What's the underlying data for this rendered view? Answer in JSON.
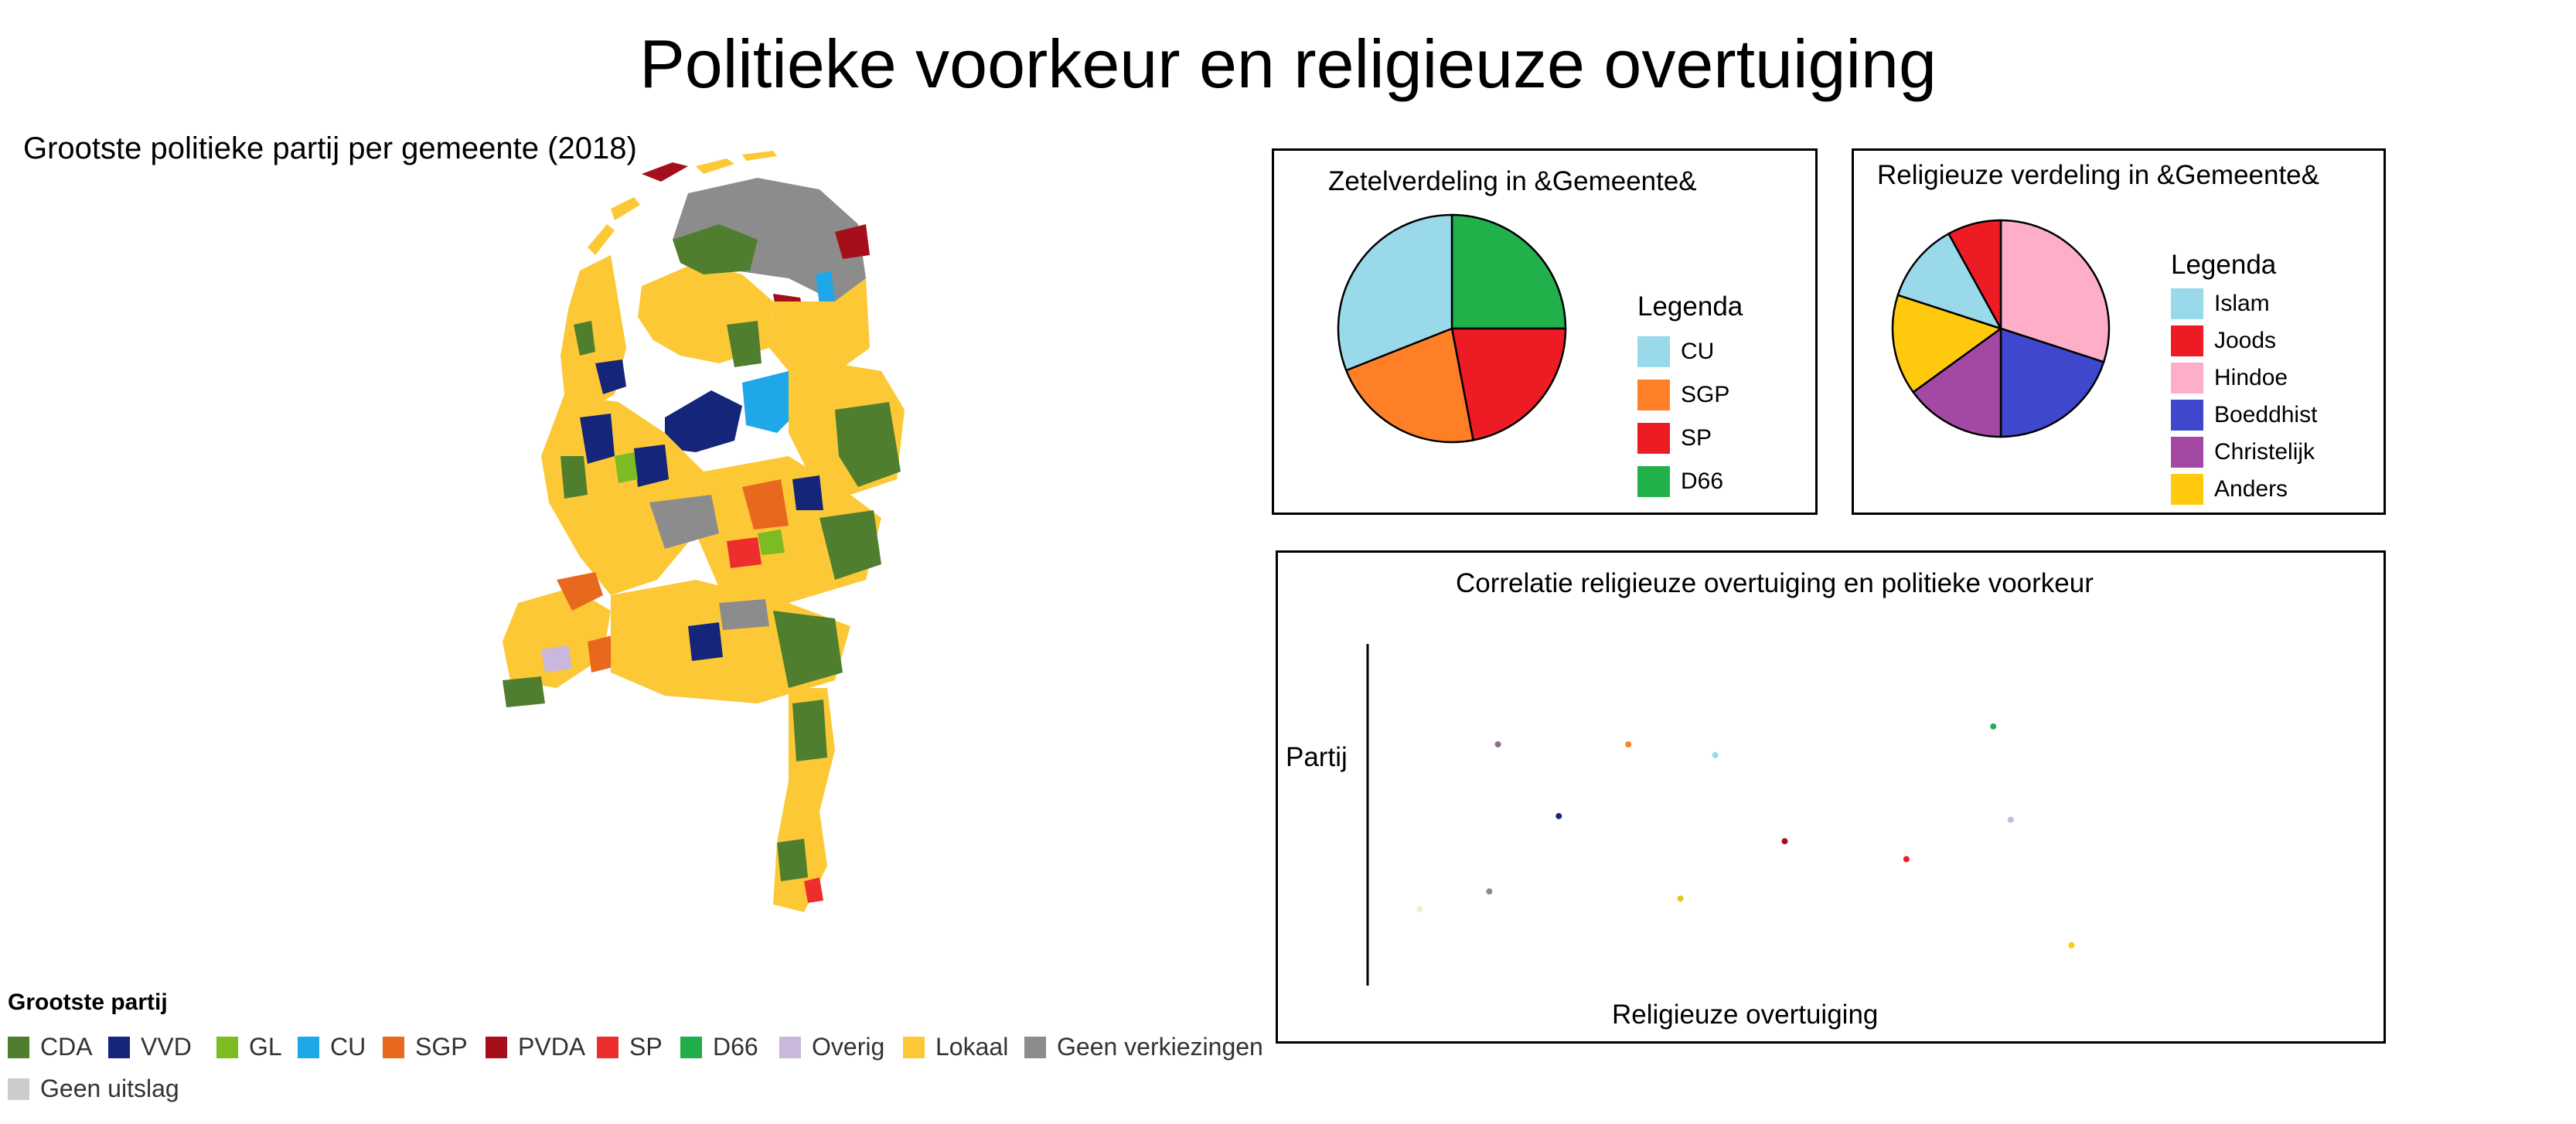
{
  "title": "Politieke voorkeur en religieuze overtuiging",
  "map": {
    "title": "Grootste politieke partij per gemeente (2018)",
    "legend_title": "Grootste partij",
    "legend": [
      {
        "label": "CDA",
        "color": "#4f7f2e"
      },
      {
        "label": "VVD",
        "color": "#14257a"
      },
      {
        "label": "GL",
        "color": "#7cbb22"
      },
      {
        "label": "CU",
        "color": "#1ea8ea"
      },
      {
        "label": "SGP",
        "color": "#e8681e"
      },
      {
        "label": "PVDA",
        "color": "#a50f1c"
      },
      {
        "label": "SP",
        "color": "#ee2d2d"
      },
      {
        "label": "D66",
        "color": "#1fae4a"
      },
      {
        "label": "Overig",
        "color": "#c9b7dc"
      },
      {
        "label": "Lokaal",
        "color": "#fcc836"
      },
      {
        "label": "Geen verkiezingen",
        "color": "#8c8c8c"
      },
      {
        "label": "Geen uitslag",
        "color": "#cccccc"
      }
    ]
  },
  "chart_data": [
    {
      "type": "pie",
      "title": "Zetelverdeling in &Gemeente&",
      "legend_title": "Legenda",
      "slices": [
        {
          "label": "D66",
          "value": 25,
          "color": "#22b04b"
        },
        {
          "label": "SP",
          "value": 22,
          "color": "#ed1c24"
        },
        {
          "label": "SGP",
          "value": 22,
          "color": "#ff7f27"
        },
        {
          "label": "CU",
          "value": 31,
          "color": "#99d9ea"
        }
      ],
      "legend": [
        {
          "label": "CU",
          "color": "#99d9ea"
        },
        {
          "label": "SGP",
          "color": "#ff7f27"
        },
        {
          "label": "SP",
          "color": "#ed1c24"
        },
        {
          "label": "D66",
          "color": "#22b04b"
        }
      ]
    },
    {
      "type": "pie",
      "title": "Religieuze verdeling in &Gemeente&",
      "legend_title": "Legenda",
      "slices": [
        {
          "label": "Hindoe",
          "value": 30,
          "color": "#ffaec9"
        },
        {
          "label": "Boeddhist",
          "value": 20,
          "color": "#3f48cc"
        },
        {
          "label": "Christelijk",
          "value": 15,
          "color": "#a349a4"
        },
        {
          "label": "Anders",
          "value": 15,
          "color": "#ffc90e"
        },
        {
          "label": "Islam",
          "value": 12,
          "color": "#99d9ea"
        },
        {
          "label": "Joods",
          "value": 8,
          "color": "#ed1c24"
        }
      ],
      "legend": [
        {
          "label": "Islam",
          "color": "#99d9ea"
        },
        {
          "label": "Joods",
          "color": "#ed1c24"
        },
        {
          "label": "Hindoe",
          "color": "#ffaec9"
        },
        {
          "label": "Boeddhist",
          "color": "#3f48cc"
        },
        {
          "label": "Christelijk",
          "color": "#a349a4"
        },
        {
          "label": "Anders",
          "color": "#ffc90e"
        }
      ]
    },
    {
      "type": "scatter",
      "title": "Correlatie religieuze overtuiging en politieke voorkeur",
      "xlabel": "Religieuze overtuiging",
      "ylabel": "Partij",
      "xlim": [
        0,
        100
      ],
      "ylim": [
        0,
        100
      ],
      "points": [
        {
          "x": 15,
          "y": 72,
          "color": "#8c6d8c"
        },
        {
          "x": 30,
          "y": 72,
          "color": "#ff7f27"
        },
        {
          "x": 40,
          "y": 69,
          "color": "#99d9ea"
        },
        {
          "x": 72,
          "y": 77,
          "color": "#22b04b"
        },
        {
          "x": 22,
          "y": 52,
          "color": "#14257a"
        },
        {
          "x": 74,
          "y": 51,
          "color": "#c9b7dc"
        },
        {
          "x": 48,
          "y": 45,
          "color": "#a50f1c"
        },
        {
          "x": 62,
          "y": 40,
          "color": "#ed1c24"
        },
        {
          "x": 14,
          "y": 31,
          "color": "#8c8c8c"
        },
        {
          "x": 36,
          "y": 29,
          "color": "#e8c71a"
        },
        {
          "x": 81,
          "y": 16,
          "color": "#ffc90e"
        },
        {
          "x": 6,
          "y": 26,
          "color": "#f5ecd5"
        }
      ]
    }
  ]
}
